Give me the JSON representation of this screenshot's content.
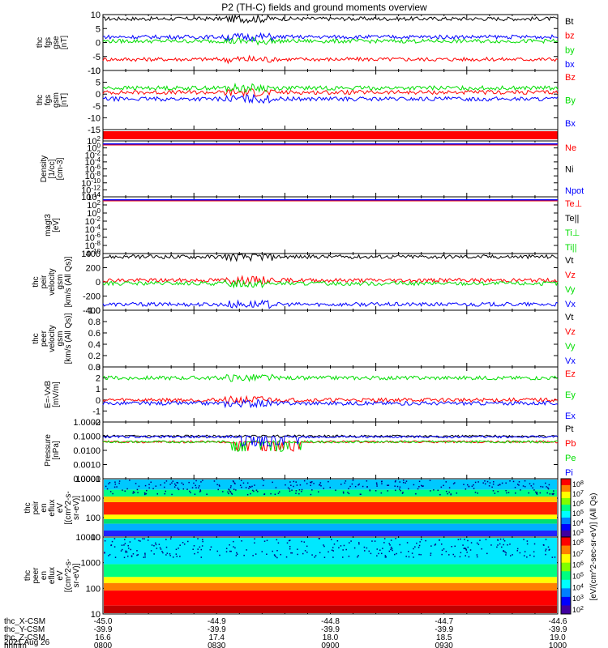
{
  "title": "P2 (TH-C) fields and ground moments overview",
  "colors": {
    "black": "#000000",
    "red": "#ff0000",
    "green": "#00dd00",
    "blue": "#0000ff"
  },
  "chart_data": [
    {
      "type": "line",
      "panel": "fgs_gse",
      "ylabel": [
        "thc",
        "fgs",
        "gse",
        "[nT]"
      ],
      "ylim": [
        -10,
        10
      ],
      "yticks": [
        "10",
        "5",
        "0",
        "-5",
        "-10"
      ],
      "series": [
        {
          "name": "Bt",
          "color": "black",
          "typical": 8.5
        },
        {
          "name": "bz",
          "color": "red",
          "typical": -6
        },
        {
          "name": "by",
          "color": "green",
          "typical": 0.5
        },
        {
          "name": "bx",
          "color": "blue",
          "typical": 2
        }
      ]
    },
    {
      "type": "line",
      "panel": "fgs_gsm",
      "ylabel": [
        "thc",
        "fgs",
        "gsm",
        "[nT]"
      ],
      "ylim": [
        -17,
        10
      ],
      "yticks": [
        "10",
        "5",
        "0",
        "-5",
        "-10",
        "-15"
      ],
      "series": [
        {
          "name": "Bz",
          "color": "red",
          "typical": 0
        },
        {
          "name": "By",
          "color": "green",
          "typical": 2
        },
        {
          "name": "Bx",
          "color": "blue",
          "typical": -3
        }
      ]
    },
    {
      "type": "line",
      "panel": "density",
      "ylabel": [
        "Density",
        "[1/cc]",
        "[cm-3]"
      ],
      "ylim": [
        "10^-14",
        "10^2"
      ],
      "yticks": [
        "10^2",
        "10^0",
        "10^-2",
        "10^-4",
        "10^-6",
        "10^-8",
        "10^-10",
        "10^-12",
        "10^-14"
      ],
      "series": [
        {
          "name": "Ne",
          "color": "red"
        },
        {
          "name": "Ni",
          "color": "black"
        },
        {
          "name": "Npot",
          "color": "blue"
        }
      ]
    },
    {
      "type": "line",
      "panel": "temperature",
      "ylabel": [
        "magt3",
        "[eV]"
      ],
      "ylim": [
        "10^-10",
        "10^4"
      ],
      "yticks": [
        "10^4",
        "10^2",
        "10^0",
        "10^-2",
        "10^-4",
        "10^-6",
        "10^-8",
        "10^-10"
      ],
      "series": [
        {
          "name": "Te⊥",
          "color": "red"
        },
        {
          "name": "Te||",
          "color": "black"
        },
        {
          "name": "Ti⊥",
          "color": "green"
        },
        {
          "name": "Ti||",
          "color": "green"
        }
      ]
    },
    {
      "type": "line",
      "panel": "peir_velocity",
      "ylabel": [
        "thc",
        "peir",
        "velocity",
        "gsm",
        "[km/s (All Qs)]"
      ],
      "ylim": [
        -450,
        420
      ],
      "yticks": [
        "400",
        "200",
        "0",
        "-200",
        "-400"
      ],
      "series": [
        {
          "name": "Vt",
          "color": "black",
          "typical": 370
        },
        {
          "name": "Vz",
          "color": "red",
          "typical": 10
        },
        {
          "name": "Vy",
          "color": "green",
          "typical": -40
        },
        {
          "name": "Vx",
          "color": "blue",
          "typical": -360
        }
      ]
    },
    {
      "type": "line",
      "panel": "peer_velocity",
      "ylabel": [
        "thc",
        "peer",
        "velocity",
        "gsm",
        "[km/s (All Qs)]"
      ],
      "ylim": [
        0,
        1
      ],
      "yticks": [
        "1.0",
        "0.8",
        "0.6",
        "0.4",
        "0.2",
        "0.0"
      ],
      "series": [
        {
          "name": "Vt",
          "color": "black"
        },
        {
          "name": "Vz",
          "color": "red"
        },
        {
          "name": "Vy",
          "color": "green"
        },
        {
          "name": "Vx",
          "color": "blue"
        }
      ]
    },
    {
      "type": "line",
      "panel": "efield",
      "ylabel": [
        "E=-VxB",
        "[mV/m]"
      ],
      "ylim": [
        -2,
        3
      ],
      "yticks": [
        "3",
        "2",
        "1",
        "0",
        "-1",
        "-2"
      ],
      "series": [
        {
          "name": "Ez",
          "color": "red",
          "typical": 0
        },
        {
          "name": "Ey",
          "color": "green",
          "typical": 2
        },
        {
          "name": "Ex",
          "color": "blue",
          "typical": -0.3
        }
      ]
    },
    {
      "type": "line",
      "panel": "pressure",
      "ylabel": [
        "Pressure",
        "[nPa]"
      ],
      "ylim": [
        0.0001,
        1.0
      ],
      "yticks": [
        "1.0000",
        "0.1000",
        "0.0100",
        "0.0010",
        "0.0001"
      ],
      "series": [
        {
          "name": "Pt",
          "color": "black",
          "typical": 0.1
        },
        {
          "name": "Pb",
          "color": "red",
          "typical": 0.04
        },
        {
          "name": "Pe",
          "color": "green",
          "typical": 0.04
        },
        {
          "name": "Pi",
          "color": "blue",
          "typical": 0.09
        }
      ]
    },
    {
      "type": "heatmap",
      "panel": "peir_en_eflux",
      "ylabel": [
        "thc",
        "peir",
        "en",
        "eflux",
        "eV",
        "[(cm^2-s-",
        "sr-eV)]"
      ],
      "ylim": [
        10,
        10000
      ],
      "yticks": [
        "10000",
        "1000",
        "100",
        "10"
      ],
      "colorbar": {
        "ticks": [
          "10^8",
          "10^7",
          "10^6",
          "10^5",
          "10^4",
          "10^3"
        ]
      }
    },
    {
      "type": "heatmap",
      "panel": "peer_en_eflux",
      "ylabel": [
        "thc",
        "peer",
        "en",
        "eflux",
        "eV",
        "[(cm^2-s-",
        "sr-eV)]"
      ],
      "ylim": [
        10,
        10000
      ],
      "yticks": [
        "10000",
        "1000",
        "100",
        "10"
      ],
      "colorbar": {
        "ticks": [
          "10^8",
          "10^7",
          "10^6",
          "10^5",
          "10^4",
          "10^3",
          "10^2"
        ]
      }
    }
  ],
  "colorbar_label": "[eV/(cm^2-sec-sr-eV)] (All Qs)",
  "xaxis": {
    "rows": [
      {
        "label": "thc_X-CSM",
        "values": [
          "-45.0",
          "-44.9",
          "-44.8",
          "-44.7",
          "-44.6"
        ]
      },
      {
        "label": "thc_Y-CSM",
        "values": [
          "-39.9",
          "-39.9",
          "-39.9",
          "-39.9",
          "-39.9"
        ]
      },
      {
        "label": "thc_Z-CSM",
        "values": [
          "16.6",
          "17.4",
          "18.0",
          "18.5",
          "19.0"
        ]
      },
      {
        "label": "hhmm",
        "values": [
          "0800",
          "0830",
          "0900",
          "0930",
          "1000"
        ]
      }
    ],
    "date": "2021 Aug 26"
  }
}
